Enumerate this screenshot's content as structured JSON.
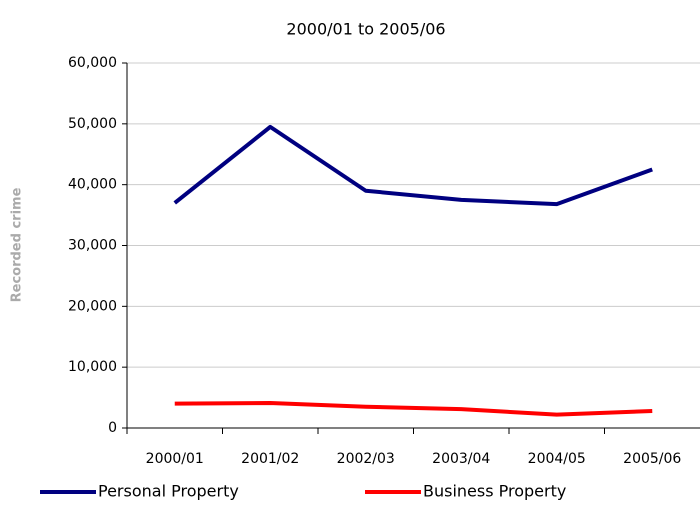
{
  "chart_data": {
    "type": "line",
    "title": "2000/01 to 2005/06",
    "y_label": "Recorded crime",
    "categories": [
      "2000/01",
      "2001/02",
      "2002/03",
      "2003/04",
      "2004/05",
      "2005/06"
    ],
    "series": [
      {
        "name": "Personal Property",
        "color": "#000080",
        "values": [
          37000,
          49500,
          39000,
          37500,
          36800,
          42500
        ]
      },
      {
        "name": "Business Property",
        "color": "#ff0000",
        "values": [
          4000,
          4100,
          3500,
          3100,
          2200,
          2800
        ]
      }
    ],
    "ylim": [
      0,
      60000
    ],
    "yticks": [
      0,
      {
        "value": 10000,
        "label": "10,000"
      },
      {
        "value": 20000,
        "label": "20,000"
      },
      {
        "value": 30000,
        "label": "30,000"
      },
      {
        "value": 40000,
        "label": "40,000"
      },
      {
        "value": 50000,
        "label": "50,000"
      },
      {
        "value": 60000,
        "label": "60,000"
      }
    ],
    "grid": true,
    "legend": "bottom"
  }
}
